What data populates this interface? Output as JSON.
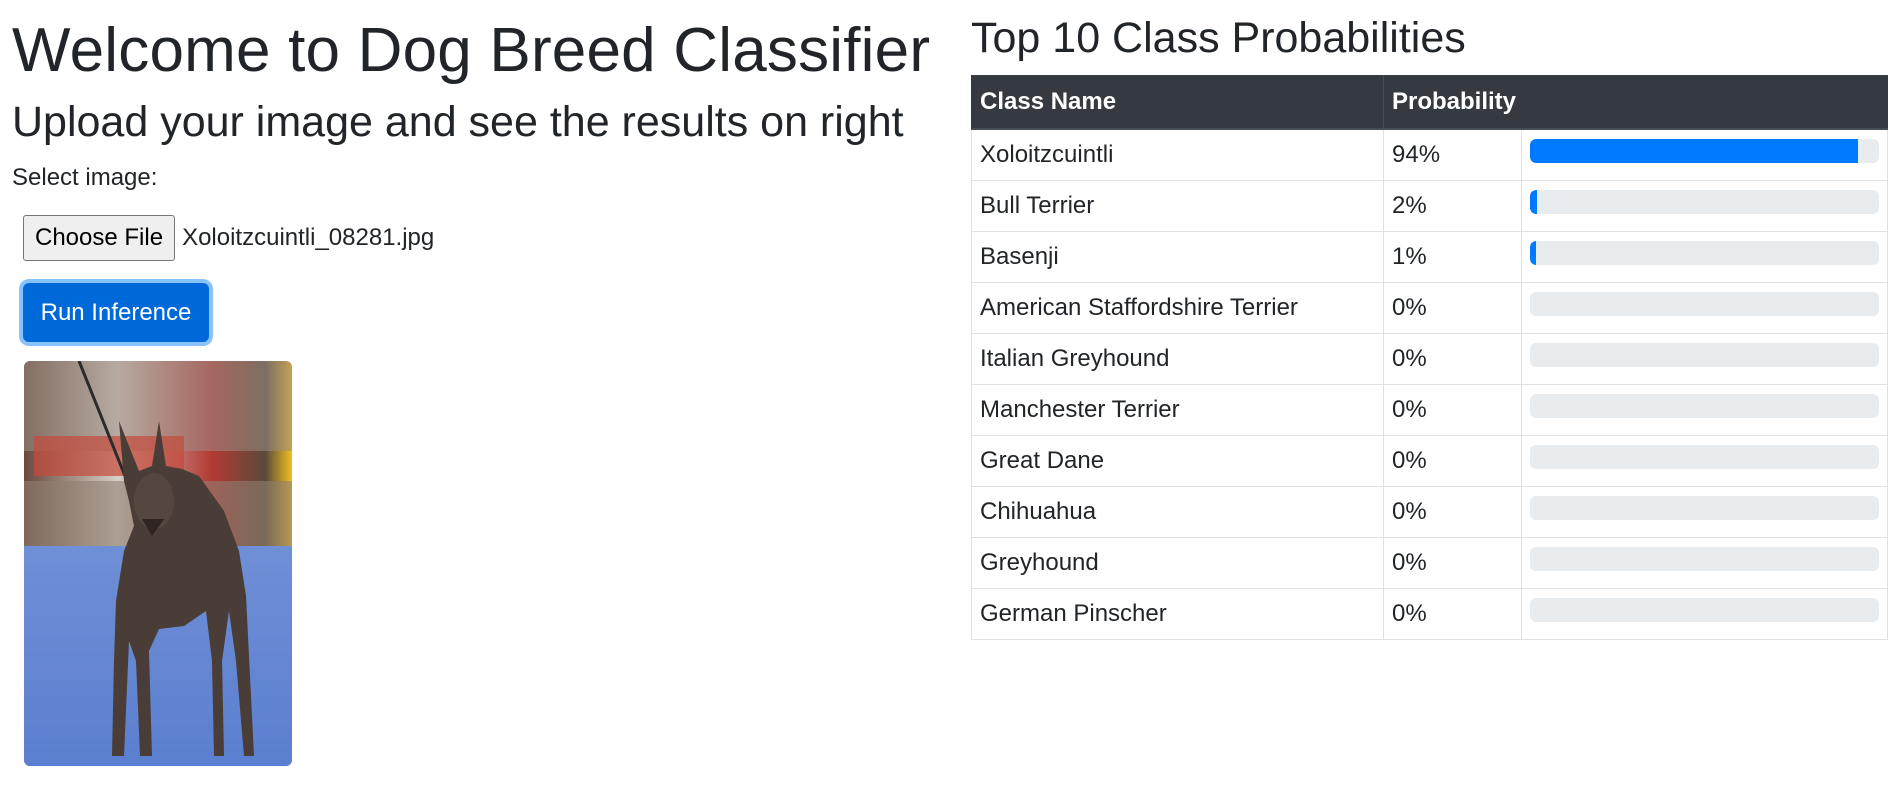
{
  "page": {
    "title": "Welcome to Dog Breed Classifier",
    "subtitle": "Upload your image and see the results on right"
  },
  "upload": {
    "select_label": "Select image:",
    "choose_file_label": "Choose File",
    "file_name": "Xoloitzcuintli_08281.jpg",
    "run_label": "Run Inference"
  },
  "results": {
    "title": "Top 10 Class Probabilities",
    "columns": [
      "Class Name",
      "Probability"
    ],
    "rows": [
      {
        "name": "Xoloitzcuintli",
        "prob_text": "94%",
        "fraction": 0.94
      },
      {
        "name": "Bull Terrier",
        "prob_text": "2%",
        "fraction": 0.02
      },
      {
        "name": "Basenji",
        "prob_text": "1%",
        "fraction": 0.01
      },
      {
        "name": "American Staffordshire Terrier",
        "prob_text": "0%",
        "fraction": 0.0
      },
      {
        "name": "Italian Greyhound",
        "prob_text": "0%",
        "fraction": 0.0
      },
      {
        "name": "Manchester Terrier",
        "prob_text": "0%",
        "fraction": 0.0
      },
      {
        "name": "Great Dane",
        "prob_text": "0%",
        "fraction": 0.0
      },
      {
        "name": "Chihuahua",
        "prob_text": "0%",
        "fraction": 0.0
      },
      {
        "name": "Greyhound",
        "prob_text": "0%",
        "fraction": 0.0
      },
      {
        "name": "German Pinscher",
        "prob_text": "0%",
        "fraction": 0.0
      }
    ]
  },
  "colors": {
    "accent": "#007bff",
    "button": "#0069d9",
    "table_header": "#343a40",
    "track": "#e9ecef"
  }
}
